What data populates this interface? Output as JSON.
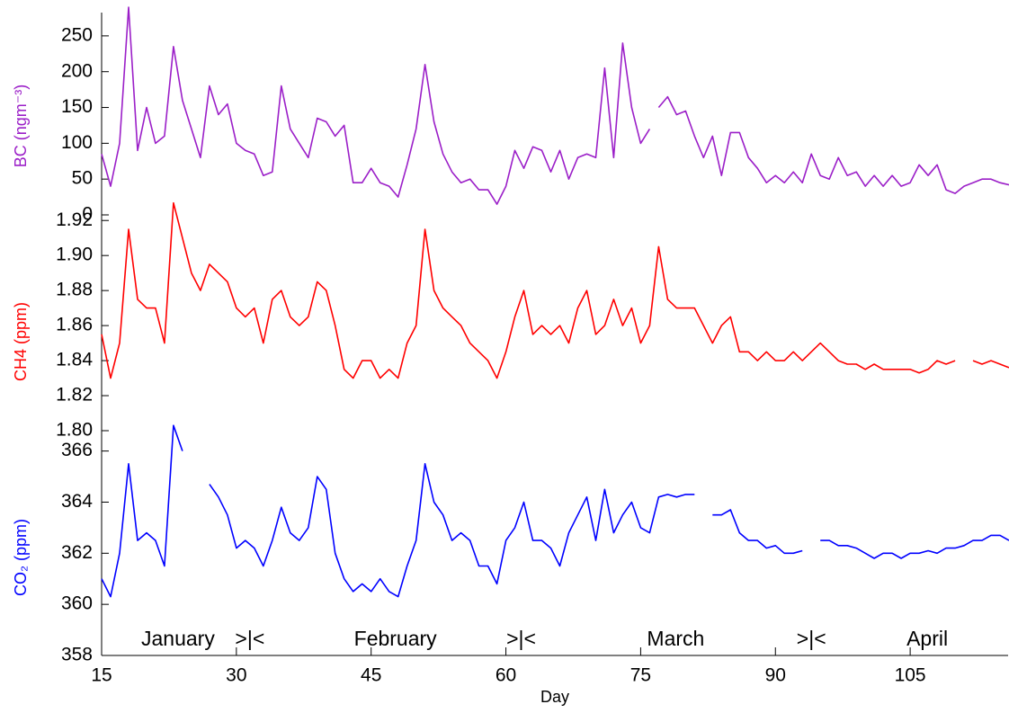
{
  "chart_data": [
    {
      "type": "line",
      "ylabel": "BC (ngm⁻³)",
      "xlim": [
        15,
        116
      ],
      "ylim": [
        0,
        280
      ],
      "yticks": [
        0,
        50,
        100,
        150,
        200,
        250
      ],
      "x": [
        15,
        16,
        17,
        18,
        19,
        20,
        21,
        22,
        23,
        24,
        25,
        26,
        27,
        28,
        29,
        30,
        31,
        32,
        33,
        34,
        35,
        36,
        37,
        38,
        39,
        40,
        41,
        42,
        43,
        44,
        45,
        46,
        47,
        48,
        49,
        50,
        51,
        52,
        53,
        54,
        55,
        56,
        57,
        58,
        59,
        60,
        61,
        62,
        63,
        64,
        65,
        66,
        67,
        68,
        69,
        70,
        71,
        72,
        73,
        74,
        75,
        76,
        76.5,
        77,
        78,
        79,
        80,
        81,
        82,
        83,
        84,
        85,
        86,
        87,
        88,
        89,
        90,
        91,
        92,
        93,
        94,
        95,
        96,
        97,
        98,
        99,
        100,
        101,
        102,
        103,
        104,
        105,
        106,
        107,
        108,
        109,
        110,
        111,
        112,
        113,
        114,
        115,
        116
      ],
      "series": [
        {
          "color": "#9b1fc8",
          "values": [
            85,
            40,
            100,
            290,
            90,
            150,
            100,
            110,
            235,
            160,
            120,
            80,
            180,
            140,
            155,
            100,
            90,
            85,
            55,
            60,
            180,
            120,
            100,
            80,
            135,
            130,
            110,
            125,
            45,
            45,
            65,
            45,
            40,
            25,
            70,
            120,
            210,
            130,
            85,
            60,
            45,
            50,
            35,
            35,
            15,
            40,
            90,
            65,
            95,
            90,
            60,
            90,
            50,
            80,
            85,
            80,
            205,
            80,
            240,
            150,
            100,
            120,
            null,
            150,
            165,
            140,
            145,
            110,
            80,
            110,
            55,
            115,
            115,
            80,
            65,
            45,
            55,
            45,
            60,
            45,
            85,
            55,
            50,
            80,
            55,
            60,
            40,
            55,
            40,
            55,
            40,
            45,
            70,
            55,
            70,
            35,
            30,
            40,
            45,
            50,
            50,
            45,
            42
          ]
        }
      ]
    },
    {
      "type": "line",
      "ylabel": "CH4 (ppm)",
      "xlim": [
        15,
        116
      ],
      "ylim": [
        1.8,
        1.935
      ],
      "yticks": [
        {
          "value": 1.8,
          "label": "1.80"
        },
        1.82,
        1.84,
        1.86,
        1.88,
        {
          "value": 1.9,
          "label": "1.90"
        },
        1.92
      ],
      "x": [
        15,
        16,
        17,
        18,
        19,
        20,
        21,
        22,
        23,
        24,
        25,
        26,
        27,
        28,
        29,
        30,
        31,
        32,
        33,
        34,
        35,
        36,
        37,
        38,
        39,
        40,
        41,
        42,
        43,
        44,
        45,
        46,
        47,
        48,
        49,
        50,
        51,
        52,
        53,
        54,
        55,
        56,
        57,
        58,
        59,
        60,
        61,
        62,
        63,
        64,
        65,
        66,
        67,
        68,
        69,
        70,
        71,
        72,
        73,
        74,
        75,
        76,
        77,
        78,
        79,
        80,
        81,
        82,
        83,
        84,
        85,
        86,
        87,
        88,
        89,
        90,
        91,
        92,
        93,
        94,
        95,
        96,
        97,
        98,
        99,
        100,
        101,
        102,
        103,
        104,
        105,
        106,
        107,
        108,
        109,
        110,
        111,
        112,
        113,
        114,
        115,
        116
      ],
      "series": [
        {
          "color": "#ff0000",
          "values": [
            1.855,
            1.83,
            1.85,
            1.915,
            1.875,
            1.87,
            1.87,
            1.85,
            1.93,
            1.91,
            1.89,
            1.88,
            1.895,
            1.89,
            1.885,
            1.87,
            1.865,
            1.87,
            1.85,
            1.875,
            1.88,
            1.865,
            1.86,
            1.865,
            1.885,
            1.88,
            1.86,
            1.835,
            1.83,
            1.84,
            1.84,
            1.83,
            1.835,
            1.83,
            1.85,
            1.86,
            1.915,
            1.88,
            1.87,
            1.865,
            1.86,
            1.85,
            1.845,
            1.84,
            1.83,
            1.845,
            1.865,
            1.88,
            1.855,
            1.86,
            1.855,
            1.86,
            1.85,
            1.87,
            1.88,
            1.855,
            1.86,
            1.875,
            1.86,
            1.87,
            1.85,
            1.86,
            1.905,
            1.875,
            1.87,
            1.87,
            1.87,
            1.86,
            1.85,
            1.86,
            1.865,
            1.845,
            1.845,
            1.84,
            1.845,
            1.84,
            1.84,
            1.845,
            1.84,
            1.845,
            1.85,
            1.845,
            1.84,
            1.838,
            1.838,
            1.835,
            1.838,
            1.835,
            1.835,
            1.835,
            1.835,
            1.833,
            1.835,
            1.84,
            1.838,
            1.84,
            null,
            1.84,
            1.838,
            1.84,
            1.838,
            1.836
          ]
        }
      ]
    },
    {
      "type": "line",
      "ylabel": "CO₂ (ppm)",
      "xlabel": "Day",
      "xlim": [
        15,
        116
      ],
      "ylim": [
        358,
        367.5
      ],
      "yticks": [
        358,
        360,
        362,
        364,
        366
      ],
      "xticks": [
        15,
        30,
        45,
        60,
        75,
        90,
        105
      ],
      "annotations": [
        "January",
        ">|<",
        "February",
        ">|<",
        "March",
        ">|<",
        "April"
      ],
      "x": [
        15,
        16,
        17,
        18,
        19,
        20,
        21,
        22,
        23,
        24,
        25,
        26,
        27,
        28,
        29,
        30,
        31,
        32,
        33,
        34,
        35,
        36,
        37,
        38,
        39,
        40,
        41,
        42,
        43,
        44,
        45,
        46,
        47,
        48,
        49,
        50,
        51,
        52,
        53,
        54,
        55,
        56,
        57,
        58,
        59,
        60,
        61,
        62,
        63,
        64,
        65,
        66,
        67,
        68,
        69,
        70,
        71,
        72,
        73,
        74,
        75,
        76,
        77,
        78,
        79,
        80,
        81,
        82,
        83,
        84,
        85,
        86,
        87,
        88,
        89,
        90,
        91,
        92,
        93,
        94,
        95,
        96,
        97,
        98,
        99,
        100,
        101,
        102,
        103,
        104,
        105,
        106,
        107,
        108,
        109,
        110,
        111,
        112,
        113,
        114,
        115,
        116
      ],
      "series": [
        {
          "color": "#0000ff",
          "values": [
            361,
            360.3,
            362,
            365.5,
            362.5,
            362.8,
            362.5,
            361.5,
            367,
            366,
            null,
            null,
            364.7,
            364.2,
            363.5,
            362.2,
            362.5,
            362.2,
            361.5,
            362.5,
            363.8,
            362.8,
            362.5,
            363,
            365,
            364.5,
            362,
            361,
            360.5,
            360.8,
            360.5,
            361,
            360.5,
            360.3,
            361.5,
            362.5,
            365.5,
            364,
            363.5,
            362.5,
            362.8,
            362.5,
            361.5,
            361.5,
            360.8,
            362.5,
            363,
            364,
            362.5,
            362.5,
            362.2,
            361.5,
            362.8,
            363.5,
            364.2,
            362.5,
            364.5,
            362.8,
            363.5,
            364,
            363,
            362.8,
            364.2,
            364.3,
            364.2,
            364.3,
            364.3,
            null,
            363.5,
            363.5,
            363.7,
            362.8,
            362.5,
            362.5,
            362.2,
            362.3,
            362,
            362,
            362.1,
            null,
            362.5,
            362.5,
            362.3,
            362.3,
            362.2,
            362,
            361.8,
            362,
            362,
            361.8,
            362,
            362,
            362.1,
            362,
            362.2,
            362.2,
            362.3,
            362.5,
            362.5,
            362.7,
            362.7,
            362.5
          ]
        }
      ]
    }
  ]
}
